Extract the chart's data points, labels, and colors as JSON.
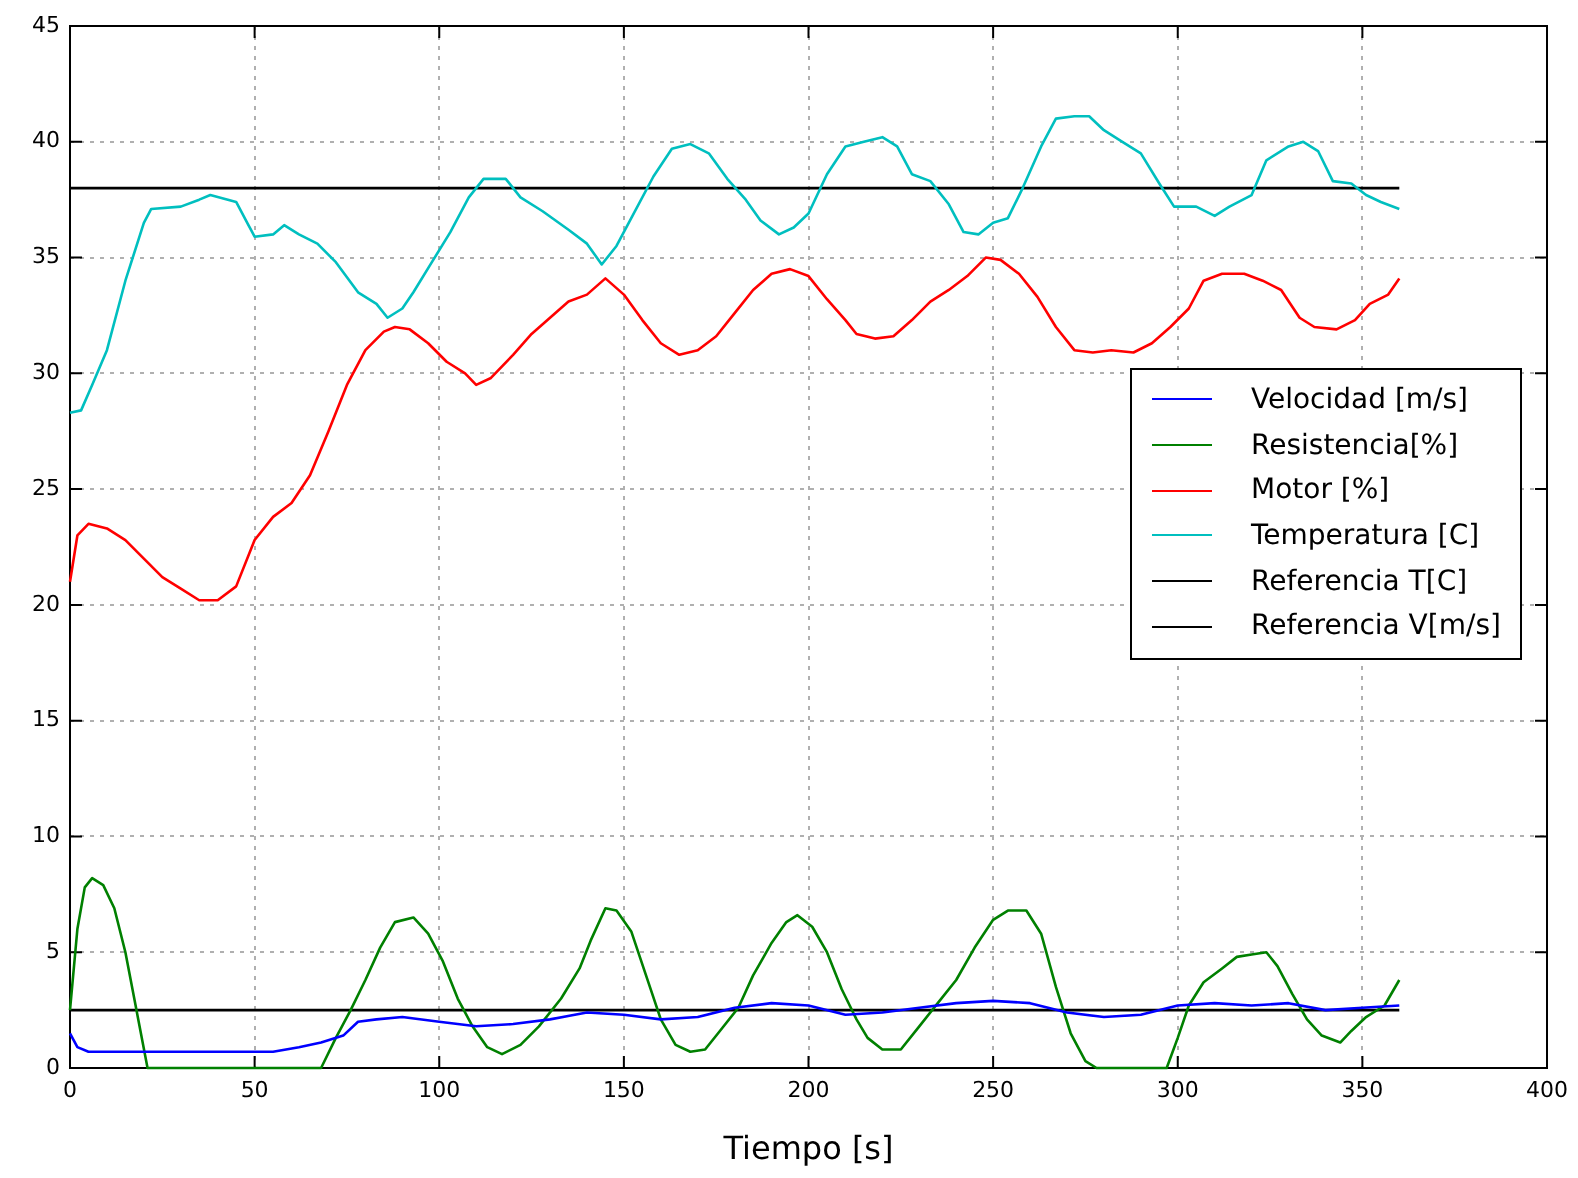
{
  "chart_data": {
    "type": "line",
    "xlabel": "Tiempo [s]",
    "xlim": [
      0,
      400
    ],
    "xticks": [
      0,
      50,
      100,
      150,
      200,
      250,
      300,
      350,
      400
    ],
    "ylim": [
      0,
      45
    ],
    "yticks": [
      0,
      5,
      10,
      15,
      20,
      25,
      30,
      35,
      40,
      45
    ],
    "grid": true,
    "legend": "right",
    "line_style": "solid",
    "marker": "none",
    "series": [
      {
        "name": "Velocidad [m/s]",
        "color": "#0000ff",
        "x": [
          0,
          2,
          5,
          20,
          40,
          55,
          62,
          68,
          74,
          78,
          83,
          90,
          100,
          110,
          120,
          130,
          140,
          150,
          160,
          170,
          180,
          190,
          200,
          210,
          220,
          230,
          240,
          250,
          260,
          270,
          280,
          290,
          300,
          310,
          320,
          330,
          340,
          350,
          360
        ],
        "values": [
          1.5,
          0.9,
          0.7,
          0.7,
          0.7,
          0.7,
          0.9,
          1.1,
          1.4,
          2,
          2.1,
          2.2,
          2.0,
          1.8,
          1.9,
          2.1,
          2.4,
          2.3,
          2.1,
          2.2,
          2.6,
          2.8,
          2.7,
          2.3,
          2.4,
          2.6,
          2.8,
          2.9,
          2.8,
          2.4,
          2.2,
          2.3,
          2.7,
          2.8,
          2.7,
          2.8,
          2.5,
          2.6,
          2.7
        ]
      },
      {
        "name": "Resistencia[%]",
        "color": "#008000",
        "x": [
          0,
          2,
          4,
          6,
          9,
          12,
          15,
          18,
          21,
          30,
          45,
          60,
          68,
          72,
          76,
          80,
          84,
          88,
          93,
          97,
          101,
          105,
          109,
          113,
          117,
          122,
          127,
          133,
          138,
          141,
          145,
          148,
          152,
          156,
          160,
          164,
          168,
          172,
          176,
          181,
          185,
          190,
          194,
          197,
          201,
          205,
          209,
          213,
          216,
          220,
          225,
          230,
          235,
          240,
          245,
          250,
          254,
          259,
          263,
          267,
          271,
          275,
          278,
          290,
          297,
          300,
          303,
          307,
          312,
          316,
          320,
          324,
          327,
          331,
          335,
          339,
          344,
          347,
          351,
          356,
          360
        ],
        "values": [
          2.5,
          6,
          7.8,
          8.2,
          7.9,
          6.9,
          5,
          2.5,
          0,
          0,
          0,
          0,
          0,
          1.3,
          2.5,
          3.8,
          5.2,
          6.3,
          6.5,
          5.8,
          4.6,
          3,
          1.8,
          0.9,
          0.6,
          1,
          1.8,
          3,
          4.3,
          5.5,
          6.9,
          6.8,
          5.9,
          4,
          2.1,
          1,
          0.7,
          0.8,
          1.6,
          2.6,
          4,
          5.4,
          6.3,
          6.6,
          6.1,
          5,
          3.4,
          2.1,
          1.3,
          0.8,
          0.8,
          1.8,
          2.8,
          3.8,
          5.2,
          6.4,
          6.8,
          6.8,
          5.8,
          3.5,
          1.5,
          0.3,
          0,
          0,
          0,
          1.3,
          2.7,
          3.7,
          4.3,
          4.8,
          4.9,
          5,
          4.4,
          3.2,
          2.1,
          1.4,
          1.1,
          1.6,
          2.2,
          2.7,
          3.8
        ]
      },
      {
        "name": "Motor [%]",
        "color": "#ff0000",
        "x": [
          0,
          2,
          5,
          10,
          15,
          20,
          25,
          30,
          35,
          40,
          45,
          50,
          55,
          60,
          65,
          70,
          75,
          80,
          85,
          88,
          92,
          97,
          102,
          107,
          110,
          114,
          120,
          125,
          130,
          135,
          140,
          145,
          150,
          155,
          160,
          165,
          170,
          175,
          180,
          185,
          190,
          195,
          200,
          205,
          210,
          213,
          218,
          223,
          228,
          233,
          238,
          243,
          248,
          252,
          257,
          262,
          267,
          272,
          277,
          282,
          288,
          293,
          298,
          303,
          307,
          312,
          318,
          323,
          328,
          333,
          337,
          343,
          348,
          352,
          357,
          360
        ],
        "values": [
          21,
          23,
          23.5,
          23.3,
          22.8,
          22,
          21.2,
          20.7,
          20.2,
          20.2,
          20.8,
          22.8,
          23.8,
          24.4,
          25.6,
          27.5,
          29.5,
          31,
          31.8,
          32,
          31.9,
          31.3,
          30.5,
          30,
          29.5,
          29.8,
          30.8,
          31.7,
          32.4,
          33.1,
          33.4,
          34.1,
          33.4,
          32.3,
          31.3,
          30.8,
          31,
          31.6,
          32.6,
          33.6,
          34.3,
          34.5,
          34.2,
          33.2,
          32.3,
          31.7,
          31.5,
          31.6,
          32.3,
          33.1,
          33.6,
          34.2,
          35,
          34.9,
          34.3,
          33.3,
          32,
          31,
          30.9,
          31,
          30.9,
          31.3,
          32,
          32.8,
          34,
          34.3,
          34.3,
          34,
          33.6,
          32.4,
          32,
          31.9,
          32.3,
          33,
          33.4,
          34.1
        ]
      },
      {
        "name": "Temperatura [C]",
        "color": "#00bfbf",
        "x": [
          0,
          3,
          6,
          10,
          15,
          20,
          22,
          30,
          35,
          38,
          45,
          48,
          50,
          55,
          58,
          62,
          67,
          72,
          78,
          83,
          86,
          90,
          93,
          98,
          103,
          108,
          112,
          118,
          122,
          128,
          135,
          140,
          144,
          148,
          152,
          158,
          163,
          168,
          173,
          178,
          183,
          187,
          192,
          196,
          200,
          205,
          210,
          215,
          220,
          224,
          228,
          233,
          238,
          242,
          246,
          250,
          254,
          258,
          263,
          267,
          272,
          276,
          280,
          285,
          290,
          295,
          299,
          305,
          310,
          314,
          320,
          324,
          330,
          334,
          338,
          342,
          347,
          351,
          355,
          360
        ],
        "values": [
          28.3,
          28.4,
          29.5,
          31,
          34,
          36.5,
          37.1,
          37.2,
          37.5,
          37.7,
          37.4,
          36.5,
          35.9,
          36,
          36.4,
          36,
          35.6,
          34.8,
          33.5,
          33,
          32.4,
          32.8,
          33.5,
          34.8,
          36.1,
          37.6,
          38.4,
          38.4,
          37.6,
          37,
          36.2,
          35.6,
          34.7,
          35.5,
          36.7,
          38.5,
          39.7,
          39.9,
          39.5,
          38.4,
          37.5,
          36.6,
          36,
          36.3,
          36.9,
          38.6,
          39.8,
          40,
          40.2,
          39.8,
          38.6,
          38.3,
          37.3,
          36.1,
          36,
          36.5,
          36.7,
          38,
          39.8,
          41,
          41.1,
          41.1,
          40.5,
          40,
          39.5,
          38.2,
          37.2,
          37.2,
          36.8,
          37.2,
          37.7,
          39.2,
          39.8,
          40,
          39.6,
          38.3,
          38.2,
          37.7,
          37.4,
          37.1
        ]
      },
      {
        "name": "Referencia T[C]",
        "color": "#000000",
        "x": [
          0,
          360
        ],
        "values": [
          38,
          38
        ]
      },
      {
        "name": "Referencia V[m/s]",
        "color": "#000000",
        "x": [
          0,
          360
        ],
        "values": [
          2.5,
          2.5
        ]
      }
    ]
  }
}
